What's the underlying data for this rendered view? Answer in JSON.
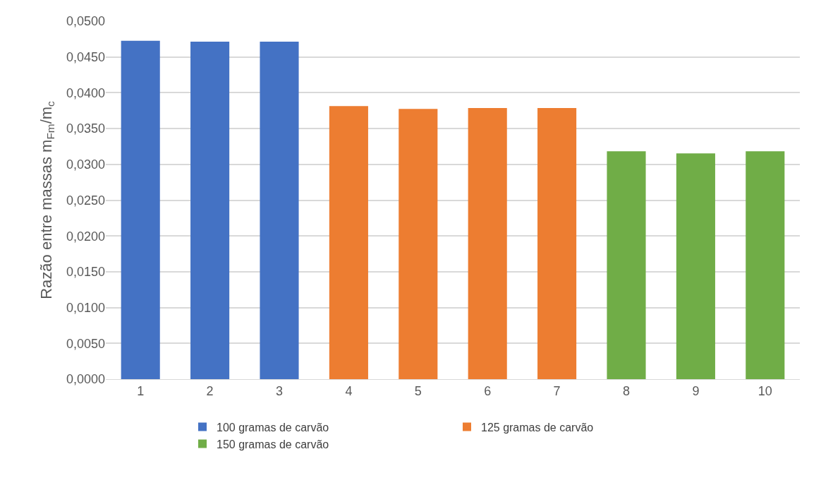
{
  "chart_data": {
    "type": "bar",
    "ylabel": "Razão entre massas m$_{Fm}$/m$_{c}$",
    "categories": [
      "1",
      "2",
      "3",
      "4",
      "5",
      "6",
      "7",
      "8",
      "9",
      "10"
    ],
    "series": [
      {
        "name": "100 gramas de carvão",
        "color": "#4472c4",
        "values": [
          0.04726,
          0.04713,
          0.04713,
          null,
          null,
          null,
          null,
          null,
          null,
          null
        ]
      },
      {
        "name": "125 gramas de carvão",
        "color": "#ed7d31",
        "values": [
          null,
          null,
          null,
          0.03814,
          0.03775,
          0.03787,
          0.03787,
          null,
          null,
          null
        ]
      },
      {
        "name": "150 gramas de carvão",
        "color": "#70ad47",
        "values": [
          null,
          null,
          null,
          null,
          null,
          null,
          null,
          0.03183,
          0.03153,
          0.03183
        ]
      }
    ],
    "ylim": [
      0,
      0.05
    ],
    "yticks": [
      {
        "value": 0,
        "label": "0,0000"
      },
      {
        "value": 0.005,
        "label": "0,0050"
      },
      {
        "value": 0.01,
        "label": "0,0100"
      },
      {
        "value": 0.015,
        "label": "0,0150"
      },
      {
        "value": 0.02,
        "label": "0,0200"
      },
      {
        "value": 0.025,
        "label": "0,0250"
      },
      {
        "value": 0.03,
        "label": "0,0300"
      },
      {
        "value": 0.035,
        "label": "0,0350"
      },
      {
        "value": 0.04,
        "label": "0,0400"
      },
      {
        "value": 0.045,
        "label": "0,0450"
      },
      {
        "value": 0.05,
        "label": "0,0500"
      }
    ],
    "grid": "y",
    "legend": "bottom"
  }
}
